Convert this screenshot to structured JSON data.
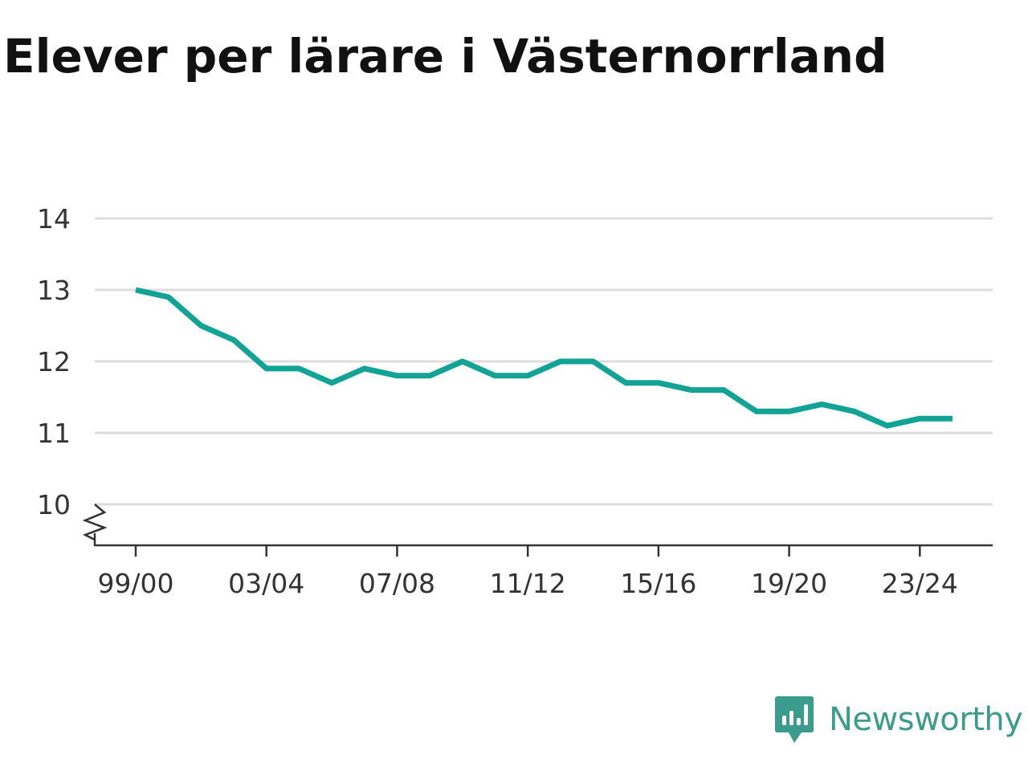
{
  "title": "Elever per lärare i Västernorrland",
  "brand": {
    "name": "Newsworthy",
    "icon": "newsworthy-logo-icon",
    "color": "#3a9c8c"
  },
  "colors": {
    "line": "#12a396",
    "grid": "#dddddd",
    "axis": "#333333"
  },
  "chart_data": {
    "type": "line",
    "title": "Elever per lärare i Västernorrland",
    "xlabel": "",
    "ylabel": "",
    "ylim": [
      9.45,
      14
    ],
    "y_ticks": [
      10,
      11,
      12,
      13,
      14
    ],
    "y_axis_break": true,
    "grid": true,
    "x_tick_labels": [
      "99/00",
      "03/04",
      "07/08",
      "11/12",
      "15/16",
      "19/20",
      "23/24"
    ],
    "x": [
      "99/00",
      "00/01",
      "01/02",
      "02/03",
      "03/04",
      "04/05",
      "05/06",
      "06/07",
      "07/08",
      "08/09",
      "09/10",
      "10/11",
      "11/12",
      "12/13",
      "13/14",
      "14/15",
      "15/16",
      "16/17",
      "17/18",
      "18/19",
      "19/20",
      "20/21",
      "21/22",
      "22/23",
      "23/24",
      "24/25"
    ],
    "series": [
      {
        "values": [
          13.0,
          12.9,
          12.5,
          12.3,
          11.9,
          11.9,
          11.7,
          11.9,
          11.8,
          11.8,
          12.0,
          11.8,
          11.8,
          12.0,
          12.0,
          11.7,
          11.7,
          11.6,
          11.6,
          11.3,
          11.3,
          11.4,
          11.3,
          11.1,
          11.2,
          11.2
        ]
      }
    ]
  }
}
